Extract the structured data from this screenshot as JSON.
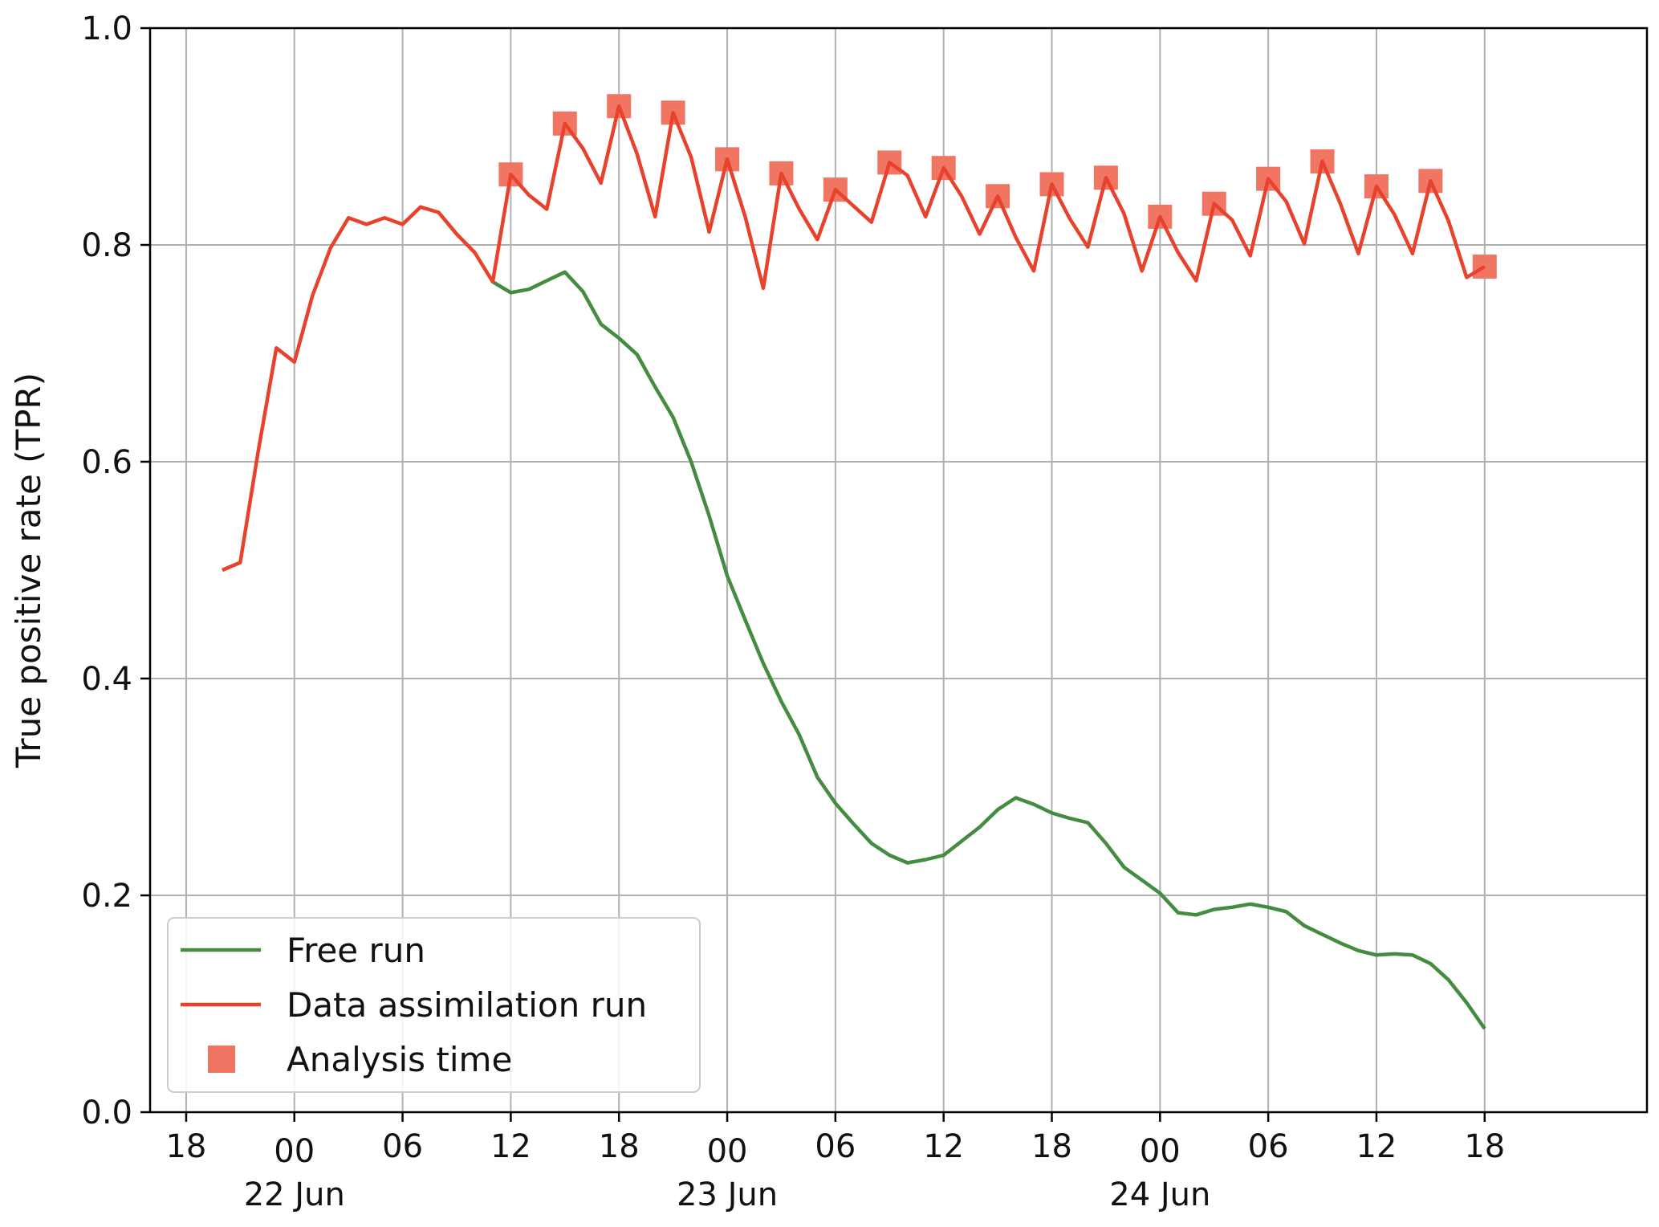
{
  "chart_data": {
    "type": "line",
    "title": "",
    "xlabel": "",
    "ylabel": "True positive rate (TPR)",
    "ylim": [
      0.0,
      1.0
    ],
    "xlim": [
      "2021-06-21 16:00",
      "2021-06-25 03:00"
    ],
    "grid": true,
    "legend_position": "lower-left",
    "x_ticks": [
      {
        "time": "2021-06-21 18:00",
        "label": "18",
        "sublabel": ""
      },
      {
        "time": "2021-06-22 00:00",
        "label": "00",
        "sublabel": "22 Jun"
      },
      {
        "time": "2021-06-22 06:00",
        "label": "06",
        "sublabel": ""
      },
      {
        "time": "2021-06-22 12:00",
        "label": "12",
        "sublabel": ""
      },
      {
        "time": "2021-06-22 18:00",
        "label": "18",
        "sublabel": ""
      },
      {
        "time": "2021-06-23 00:00",
        "label": "00",
        "sublabel": "23 Jun"
      },
      {
        "time": "2021-06-23 06:00",
        "label": "06",
        "sublabel": ""
      },
      {
        "time": "2021-06-23 12:00",
        "label": "12",
        "sublabel": ""
      },
      {
        "time": "2021-06-23 18:00",
        "label": "18",
        "sublabel": ""
      },
      {
        "time": "2021-06-24 00:00",
        "label": "00",
        "sublabel": "24 Jun"
      },
      {
        "time": "2021-06-24 06:00",
        "label": "06",
        "sublabel": ""
      },
      {
        "time": "2021-06-24 12:00",
        "label": "12",
        "sublabel": ""
      },
      {
        "time": "2021-06-24 18:00",
        "label": "18",
        "sublabel": ""
      }
    ],
    "y_ticks": [
      0.0,
      0.2,
      0.4,
      0.6,
      0.8,
      1.0
    ],
    "y_tick_labels": [
      "0.0",
      "0.2",
      "0.4",
      "0.6",
      "0.8",
      "1.0"
    ],
    "series": [
      {
        "name": "Free run",
        "kind": "line",
        "color": "#448c40",
        "points": [
          [
            "2021-06-22 11:00",
            0.766
          ],
          [
            "2021-06-22 12:00",
            0.756
          ],
          [
            "2021-06-22 13:00",
            0.759
          ],
          [
            "2021-06-22 14:00",
            0.767
          ],
          [
            "2021-06-22 15:00",
            0.775
          ],
          [
            "2021-06-22 16:00",
            0.757
          ],
          [
            "2021-06-22 17:00",
            0.727
          ],
          [
            "2021-06-22 18:00",
            0.714
          ],
          [
            "2021-06-22 19:00",
            0.699
          ],
          [
            "2021-06-22 20:00",
            0.669
          ],
          [
            "2021-06-22 21:00",
            0.641
          ],
          [
            "2021-06-22 22:00",
            0.6
          ],
          [
            "2021-06-22 23:00",
            0.55
          ],
          [
            "2021-06-23 00:00",
            0.495
          ],
          [
            "2021-06-23 01:00",
            0.454
          ],
          [
            "2021-06-23 02:00",
            0.414
          ],
          [
            "2021-06-23 03:00",
            0.379
          ],
          [
            "2021-06-23 04:00",
            0.348
          ],
          [
            "2021-06-23 05:00",
            0.309
          ],
          [
            "2021-06-23 06:00",
            0.285
          ],
          [
            "2021-06-23 07:00",
            0.266
          ],
          [
            "2021-06-23 08:00",
            0.248
          ],
          [
            "2021-06-23 09:00",
            0.237
          ],
          [
            "2021-06-23 10:00",
            0.23
          ],
          [
            "2021-06-23 11:00",
            0.233
          ],
          [
            "2021-06-23 12:00",
            0.237
          ],
          [
            "2021-06-23 13:00",
            0.25
          ],
          [
            "2021-06-23 14:00",
            0.263
          ],
          [
            "2021-06-23 15:00",
            0.279
          ],
          [
            "2021-06-23 16:00",
            0.29
          ],
          [
            "2021-06-23 17:00",
            0.284
          ],
          [
            "2021-06-23 18:00",
            0.276
          ],
          [
            "2021-06-23 19:00",
            0.271
          ],
          [
            "2021-06-23 20:00",
            0.267
          ],
          [
            "2021-06-23 21:00",
            0.248
          ],
          [
            "2021-06-23 22:00",
            0.226
          ],
          [
            "2021-06-23 23:00",
            0.214
          ],
          [
            "2021-06-24 00:00",
            0.202
          ],
          [
            "2021-06-24 01:00",
            0.184
          ],
          [
            "2021-06-24 02:00",
            0.182
          ],
          [
            "2021-06-24 03:00",
            0.187
          ],
          [
            "2021-06-24 04:00",
            0.189
          ],
          [
            "2021-06-24 05:00",
            0.192
          ],
          [
            "2021-06-24 06:00",
            0.189
          ],
          [
            "2021-06-24 07:00",
            0.185
          ],
          [
            "2021-06-24 08:00",
            0.172
          ],
          [
            "2021-06-24 09:00",
            0.164
          ],
          [
            "2021-06-24 10:00",
            0.156
          ],
          [
            "2021-06-24 11:00",
            0.149
          ],
          [
            "2021-06-24 12:00",
            0.145
          ],
          [
            "2021-06-24 13:00",
            0.146
          ],
          [
            "2021-06-24 14:00",
            0.145
          ],
          [
            "2021-06-24 15:00",
            0.137
          ],
          [
            "2021-06-24 16:00",
            0.122
          ],
          [
            "2021-06-24 17:00",
            0.101
          ],
          [
            "2021-06-24 18:00",
            0.077
          ]
        ]
      },
      {
        "name": "Data assimilation run",
        "kind": "line",
        "color": "#e8412c",
        "points": [
          [
            "2021-06-21 20:00",
            0.5
          ],
          [
            "2021-06-21 21:00",
            0.507
          ],
          [
            "2021-06-21 22:00",
            0.61
          ],
          [
            "2021-06-21 23:00",
            0.705
          ],
          [
            "2021-06-22 00:00",
            0.692
          ],
          [
            "2021-06-22 01:00",
            0.753
          ],
          [
            "2021-06-22 02:00",
            0.797
          ],
          [
            "2021-06-22 03:00",
            0.825
          ],
          [
            "2021-06-22 04:00",
            0.819
          ],
          [
            "2021-06-22 05:00",
            0.825
          ],
          [
            "2021-06-22 06:00",
            0.819
          ],
          [
            "2021-06-22 07:00",
            0.835
          ],
          [
            "2021-06-22 08:00",
            0.83
          ],
          [
            "2021-06-22 09:00",
            0.81
          ],
          [
            "2021-06-22 10:00",
            0.793
          ],
          [
            "2021-06-22 11:00",
            0.766
          ],
          [
            "2021-06-22 12:00",
            0.865
          ],
          [
            "2021-06-22 13:00",
            0.846
          ],
          [
            "2021-06-22 14:00",
            0.833
          ],
          [
            "2021-06-22 15:00",
            0.912
          ],
          [
            "2021-06-22 16:00",
            0.889
          ],
          [
            "2021-06-22 17:00",
            0.857
          ],
          [
            "2021-06-22 18:00",
            0.928
          ],
          [
            "2021-06-22 19:00",
            0.884
          ],
          [
            "2021-06-22 20:00",
            0.826
          ],
          [
            "2021-06-22 21:00",
            0.922
          ],
          [
            "2021-06-22 22:00",
            0.881
          ],
          [
            "2021-06-22 23:00",
            0.812
          ],
          [
            "2021-06-23 00:00",
            0.879
          ],
          [
            "2021-06-23 01:00",
            0.826
          ],
          [
            "2021-06-23 02:00",
            0.76
          ],
          [
            "2021-06-23 03:00",
            0.866
          ],
          [
            "2021-06-23 04:00",
            0.833
          ],
          [
            "2021-06-23 05:00",
            0.805
          ],
          [
            "2021-06-23 06:00",
            0.851
          ],
          [
            "2021-06-23 07:00",
            0.836
          ],
          [
            "2021-06-23 08:00",
            0.821
          ],
          [
            "2021-06-23 09:00",
            0.876
          ],
          [
            "2021-06-23 10:00",
            0.864
          ],
          [
            "2021-06-23 11:00",
            0.826
          ],
          [
            "2021-06-23 12:00",
            0.871
          ],
          [
            "2021-06-23 13:00",
            0.845
          ],
          [
            "2021-06-23 14:00",
            0.81
          ],
          [
            "2021-06-23 15:00",
            0.845
          ],
          [
            "2021-06-23 16:00",
            0.807
          ],
          [
            "2021-06-23 17:00",
            0.776
          ],
          [
            "2021-06-23 18:00",
            0.856
          ],
          [
            "2021-06-23 19:00",
            0.824
          ],
          [
            "2021-06-23 20:00",
            0.798
          ],
          [
            "2021-06-23 21:00",
            0.862
          ],
          [
            "2021-06-23 22:00",
            0.829
          ],
          [
            "2021-06-23 23:00",
            0.776
          ],
          [
            "2021-06-24 00:00",
            0.826
          ],
          [
            "2021-06-24 01:00",
            0.793
          ],
          [
            "2021-06-24 02:00",
            0.767
          ],
          [
            "2021-06-24 03:00",
            0.838
          ],
          [
            "2021-06-24 04:00",
            0.823
          ],
          [
            "2021-06-24 05:00",
            0.79
          ],
          [
            "2021-06-24 06:00",
            0.861
          ],
          [
            "2021-06-24 07:00",
            0.84
          ],
          [
            "2021-06-24 08:00",
            0.801
          ],
          [
            "2021-06-24 09:00",
            0.877
          ],
          [
            "2021-06-24 10:00",
            0.838
          ],
          [
            "2021-06-24 11:00",
            0.792
          ],
          [
            "2021-06-24 12:00",
            0.854
          ],
          [
            "2021-06-24 13:00",
            0.828
          ],
          [
            "2021-06-24 14:00",
            0.792
          ],
          [
            "2021-06-24 15:00",
            0.859
          ],
          [
            "2021-06-24 16:00",
            0.822
          ],
          [
            "2021-06-24 17:00",
            0.77
          ],
          [
            "2021-06-24 18:00",
            0.78
          ]
        ]
      },
      {
        "name": "Analysis time",
        "kind": "marker",
        "color": "#f07563",
        "points": [
          [
            "2021-06-22 12:00",
            0.865
          ],
          [
            "2021-06-22 15:00",
            0.912
          ],
          [
            "2021-06-22 18:00",
            0.928
          ],
          [
            "2021-06-22 21:00",
            0.922
          ],
          [
            "2021-06-23 00:00",
            0.879
          ],
          [
            "2021-06-23 03:00",
            0.866
          ],
          [
            "2021-06-23 06:00",
            0.851
          ],
          [
            "2021-06-23 09:00",
            0.876
          ],
          [
            "2021-06-23 12:00",
            0.871
          ],
          [
            "2021-06-23 15:00",
            0.845
          ],
          [
            "2021-06-23 18:00",
            0.856
          ],
          [
            "2021-06-23 21:00",
            0.862
          ],
          [
            "2021-06-24 00:00",
            0.826
          ],
          [
            "2021-06-24 03:00",
            0.838
          ],
          [
            "2021-06-24 06:00",
            0.861
          ],
          [
            "2021-06-24 09:00",
            0.877
          ],
          [
            "2021-06-24 12:00",
            0.854
          ],
          [
            "2021-06-24 15:00",
            0.859
          ],
          [
            "2021-06-24 18:00",
            0.78
          ]
        ]
      }
    ]
  }
}
